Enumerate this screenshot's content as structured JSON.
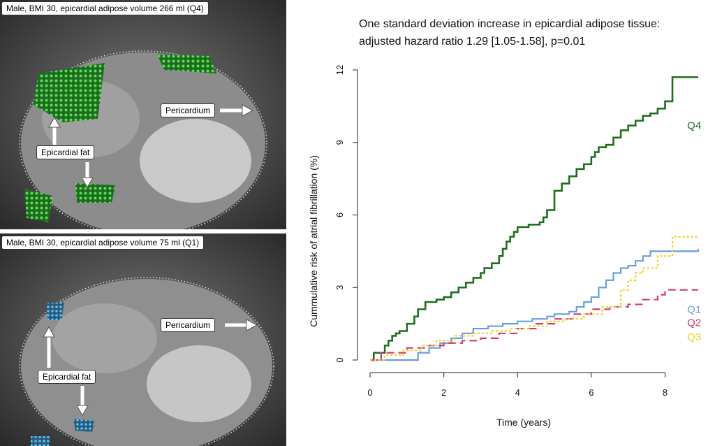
{
  "panels": {
    "top": {
      "caption": "Male, BMI 30, epicardial adipose volume 266 ml (Q4)",
      "fat_label": "Epicardial fat",
      "pericardium_label": "Pericardium",
      "fat_color": "#3cc83c"
    },
    "bottom": {
      "caption": "Male, BMI 30, epicardial adipose volume 75 ml (Q1)",
      "fat_label": "Epicardial fat",
      "pericardium_label": "Pericardium",
      "fat_color": "#3aa6e0"
    }
  },
  "chart_data": {
    "type": "line",
    "title_line1": "One standard deviation increase in epicardial adipose tissue:",
    "title_line2": "adjusted hazard ratio 1.29 [1.05-1.58], p=0.01",
    "xlabel": "Time (years)",
    "ylabel": "Cummulative risk of atrial fibrillation (%)",
    "xlim": [
      0,
      8.9
    ],
    "ylim": [
      0,
      12
    ],
    "xticks": [
      "0",
      "2",
      "4",
      "6",
      "8"
    ],
    "yticks": [
      "0",
      "3",
      "6",
      "9",
      "12"
    ],
    "legend": "inline labels at right end of curves",
    "grid": false,
    "series": [
      {
        "name": "Q4",
        "color": "#1e6e1e",
        "dash": "solid",
        "x": [
          0,
          0.1,
          0.4,
          0.5,
          0.6,
          0.7,
          0.8,
          1.0,
          1.2,
          1.3,
          1.5,
          1.7,
          1.8,
          2.0,
          2.2,
          2.4,
          2.6,
          2.8,
          3.0,
          3.1,
          3.3,
          3.5,
          3.6,
          3.7,
          3.8,
          3.9,
          4.0,
          4.3,
          4.6,
          4.7,
          4.8,
          5.0,
          5.2,
          5.4,
          5.6,
          5.8,
          6.0,
          6.1,
          6.2,
          6.4,
          6.6,
          6.8,
          7.0,
          7.2,
          7.4,
          7.6,
          7.8,
          8.0,
          8.2,
          8.4,
          8.9
        ],
        "y": [
          0,
          0.3,
          0.6,
          0.8,
          1.0,
          1.1,
          1.2,
          1.5,
          1.8,
          2.1,
          2.4,
          2.4,
          2.5,
          2.6,
          2.8,
          3.0,
          3.2,
          3.4,
          3.6,
          3.8,
          4.0,
          4.3,
          4.6,
          4.9,
          5.1,
          5.3,
          5.5,
          5.6,
          5.7,
          5.9,
          6.2,
          7.0,
          7.3,
          7.6,
          7.9,
          8.1,
          8.4,
          8.6,
          8.8,
          8.9,
          9.2,
          9.5,
          9.7,
          9.9,
          10.1,
          10.2,
          10.4,
          10.7,
          11.7,
          11.7,
          11.7
        ]
      },
      {
        "name": "Q1",
        "color": "#6a9de0",
        "dash": "solid",
        "x": [
          0,
          1.3,
          1.6,
          1.9,
          2.2,
          2.5,
          2.8,
          3.2,
          3.6,
          4.0,
          4.4,
          4.8,
          5.0,
          5.4,
          5.6,
          5.8,
          6.0,
          6.2,
          6.4,
          6.6,
          6.8,
          7.0,
          7.2,
          7.4,
          7.6,
          8.9
        ],
        "y": [
          0,
          0.3,
          0.5,
          0.7,
          0.9,
          1.1,
          1.3,
          1.4,
          1.5,
          1.6,
          1.7,
          1.8,
          1.9,
          2.0,
          2.2,
          2.4,
          2.6,
          3.0,
          3.3,
          3.6,
          3.8,
          3.9,
          4.1,
          4.3,
          4.5,
          4.6
        ]
      },
      {
        "name": "Q2",
        "color": "#d8386a",
        "dash": "dashed",
        "x": [
          0,
          0.3,
          1.0,
          1.5,
          2.0,
          2.5,
          3.0,
          3.5,
          4.0,
          4.5,
          5.0,
          5.5,
          6.0,
          6.5,
          7.0,
          7.4,
          7.8,
          8.0,
          8.9
        ],
        "y": [
          0,
          0.3,
          0.5,
          0.6,
          0.7,
          0.8,
          0.9,
          1.1,
          1.3,
          1.5,
          1.7,
          1.9,
          2.1,
          2.2,
          2.3,
          2.5,
          2.7,
          2.9,
          2.9
        ]
      },
      {
        "name": "Q3",
        "color": "#f0d020",
        "dash": "dotted",
        "x": [
          0,
          0.4,
          0.9,
          1.4,
          1.8,
          2.3,
          2.8,
          3.3,
          3.8,
          4.3,
          4.8,
          5.3,
          5.8,
          6.3,
          6.8,
          7.0,
          7.2,
          7.4,
          7.8,
          8.2,
          8.9
        ],
        "y": [
          0,
          0.2,
          0.4,
          0.6,
          0.8,
          1.0,
          1.1,
          1.2,
          1.3,
          1.4,
          1.6,
          1.7,
          1.9,
          2.2,
          2.9,
          3.3,
          3.6,
          3.8,
          4.3,
          5.1,
          5.1
        ]
      }
    ],
    "inline_labels": [
      {
        "text": "Q4",
        "color": "#1e6e1e",
        "x": 8.6,
        "y": 9.7
      },
      {
        "text": "Q1",
        "color": "#6a9de0",
        "x": 8.6,
        "y": 2.1
      },
      {
        "text": "Q2",
        "color": "#d8386a",
        "x": 8.6,
        "y": 1.55
      },
      {
        "text": "Q3",
        "color": "#f0d020",
        "x": 8.6,
        "y": 0.95
      }
    ]
  }
}
